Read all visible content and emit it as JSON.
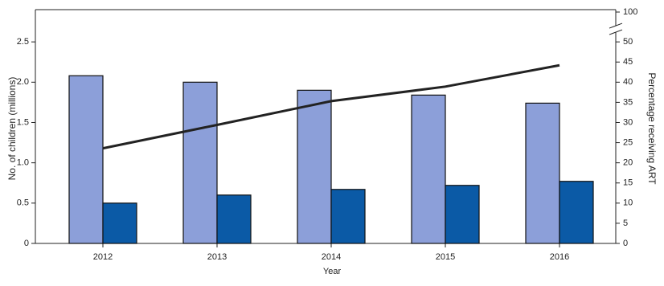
{
  "chart_data": {
    "type": "bar",
    "categories": [
      "2012",
      "2013",
      "2014",
      "2015",
      "2016"
    ],
    "xlabel": "Year",
    "ylabel": "No. of children (millions)",
    "y2label": "Percentage receiving ART",
    "ylim": [
      0,
      2.9
    ],
    "yticks": [
      0,
      0.5,
      {
        "value": 1,
        "label": "1.0"
      },
      1.5,
      {
        "value": 2,
        "label": "2.0"
      },
      2.5
    ],
    "y2lim": [
      0,
      100
    ],
    "y2ticks": [
      0,
      5,
      10,
      15,
      20,
      25,
      30,
      35,
      40,
      45,
      50,
      100
    ],
    "y2_axis_break": true,
    "series": [
      {
        "type": "bar",
        "color": "#8c9fd9",
        "values": [
          2.08,
          2.0,
          1.9,
          1.84,
          1.74
        ]
      },
      {
        "type": "bar",
        "color": "#0b5aa6",
        "values": [
          0.5,
          0.6,
          0.67,
          0.72,
          0.77
        ]
      },
      {
        "type": "line",
        "axis": "y2",
        "color": "#222222",
        "values": [
          23.6,
          29.4,
          35.3,
          38.9,
          44.2
        ]
      }
    ]
  }
}
